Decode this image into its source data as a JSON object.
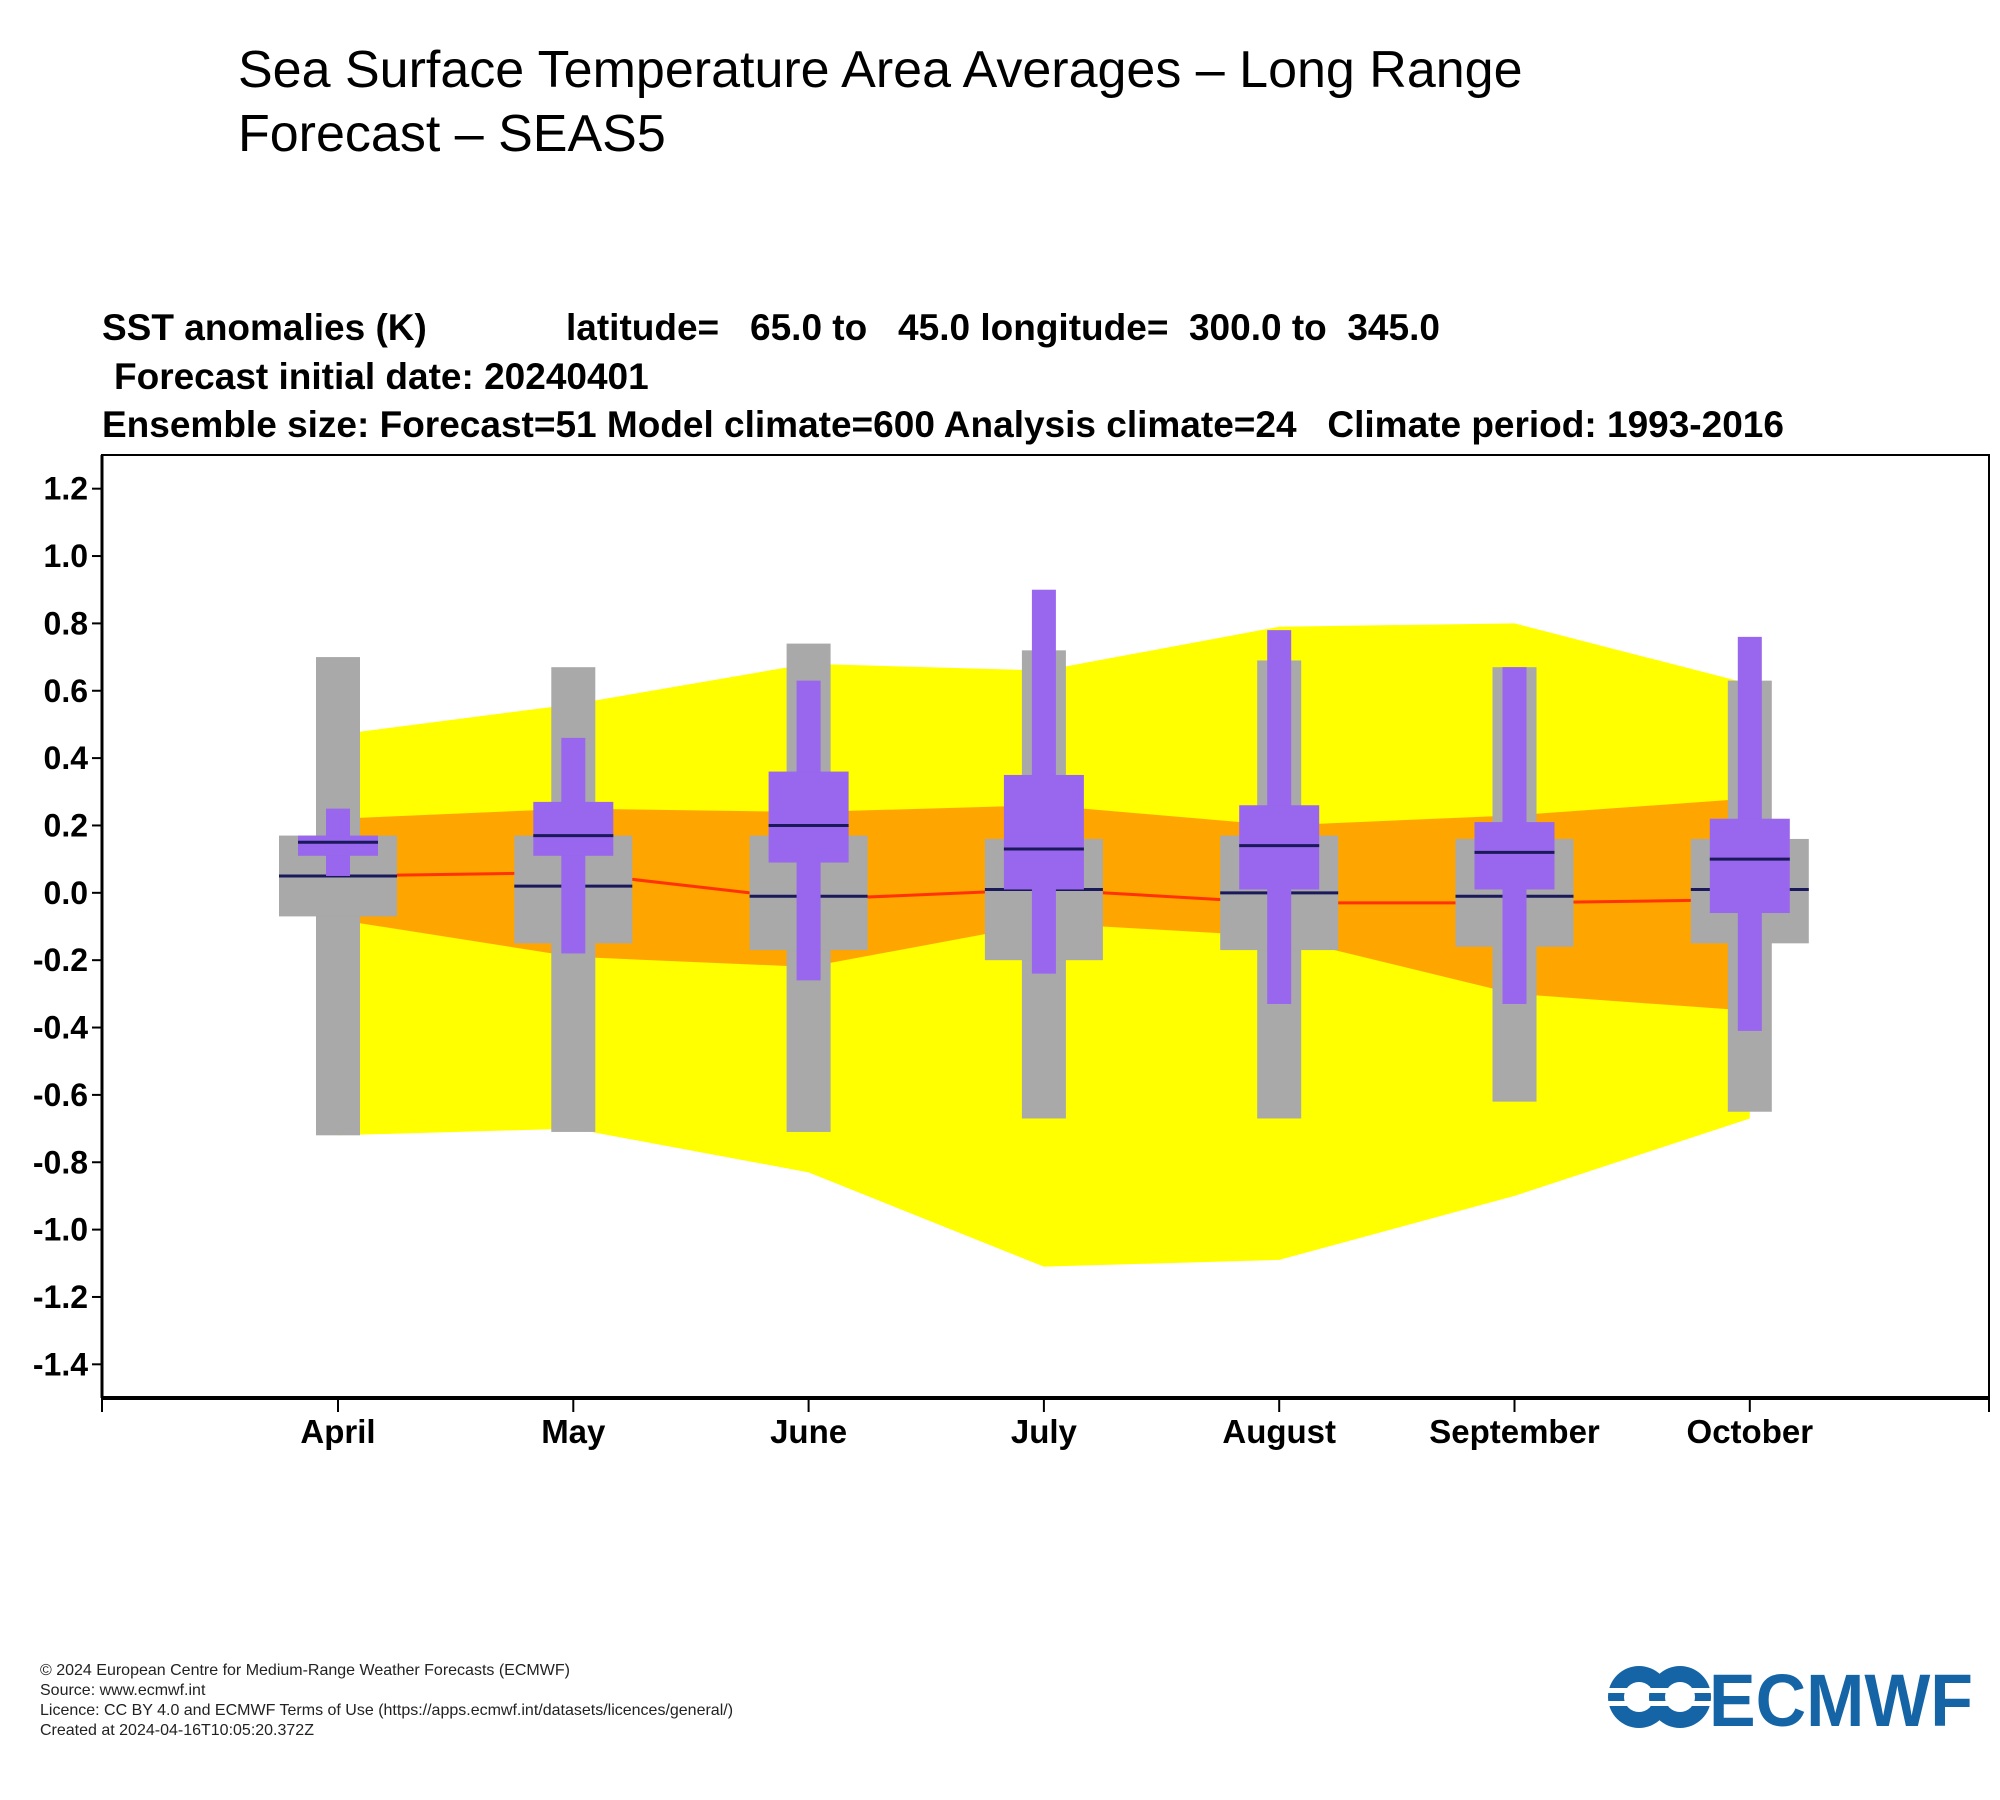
{
  "page": {
    "title": "Sea Surface Temperature Area Averages – Long Range Forecast – SEAS5"
  },
  "chart_header": {
    "line1_variable": "SST anomalies (K)",
    "line1_region": "latitude=   65.0 to   45.0 longitude=  300.0 to  345.0",
    "line2": "Forecast initial date: 20240401",
    "line3": "Ensemble size: Forecast=51 Model climate=600 Analysis climate=24   Climate period: 1993-2016"
  },
  "colors": {
    "outer_band": "#ffff00",
    "inner_band": "#ffa500",
    "median_line": "#ff3300",
    "climate_box": "#a9a9a9",
    "forecast_box": "#9966ee",
    "median_tick": "#1a1a5a",
    "logo": "#1565a6"
  },
  "chart_data": {
    "type": "box",
    "categories": [
      "April",
      "May",
      "June",
      "July",
      "August",
      "September",
      "October"
    ],
    "ylim": [
      -1.5,
      1.3
    ],
    "yticks": [
      "1.2",
      "1.0",
      "0.8",
      "0.6",
      "0.4",
      "0.2",
      "0.0",
      "-0.2",
      "-0.4",
      "-0.6",
      "-0.8",
      "-1.0",
      "-1.2",
      "-1.4"
    ],
    "ytick_values": [
      1.2,
      1.0,
      0.8,
      0.6,
      0.4,
      0.2,
      0.0,
      -0.2,
      -0.4,
      -0.6,
      -0.8,
      -1.0,
      -1.2,
      -1.4
    ],
    "analysis_outer_band": {
      "upper": [
        0.47,
        0.56,
        0.68,
        0.66,
        0.79,
        0.8,
        0.62
      ],
      "lower": [
        -0.72,
        -0.7,
        -0.83,
        -1.11,
        -1.09,
        -0.9,
        -0.67
      ]
    },
    "analysis_inner_band": {
      "upper": [
        0.22,
        0.25,
        0.24,
        0.26,
        0.2,
        0.23,
        0.28
      ],
      "lower": [
        -0.08,
        -0.19,
        -0.22,
        -0.09,
        -0.13,
        -0.3,
        -0.35
      ]
    },
    "analysis_median": [
      0.05,
      0.06,
      -0.02,
      0.01,
      -0.03,
      -0.03,
      -0.02
    ],
    "model_climate": [
      {
        "min": -0.72,
        "q1": -0.07,
        "median": 0.05,
        "q3": 0.17,
        "max": 0.7
      },
      {
        "min": -0.71,
        "q1": -0.15,
        "median": 0.02,
        "q3": 0.17,
        "max": 0.67
      },
      {
        "min": -0.71,
        "q1": -0.17,
        "median": -0.01,
        "q3": 0.17,
        "max": 0.74
      },
      {
        "min": -0.67,
        "q1": -0.2,
        "median": 0.01,
        "q3": 0.16,
        "max": 0.72
      },
      {
        "min": -0.67,
        "q1": -0.17,
        "median": 0.0,
        "q3": 0.17,
        "max": 0.69
      },
      {
        "min": -0.62,
        "q1": -0.16,
        "median": -0.01,
        "q3": 0.16,
        "max": 0.67
      },
      {
        "min": -0.65,
        "q1": -0.15,
        "median": 0.01,
        "q3": 0.16,
        "max": 0.63
      }
    ],
    "forecast": [
      {
        "min": 0.05,
        "q1": 0.11,
        "median": 0.15,
        "q3": 0.17,
        "max": 0.25
      },
      {
        "min": -0.18,
        "q1": 0.11,
        "median": 0.17,
        "q3": 0.27,
        "max": 0.46
      },
      {
        "min": -0.26,
        "q1": 0.09,
        "median": 0.2,
        "q3": 0.36,
        "max": 0.63
      },
      {
        "min": -0.24,
        "q1": 0.01,
        "median": 0.13,
        "q3": 0.35,
        "max": 0.9
      },
      {
        "min": -0.33,
        "q1": 0.01,
        "median": 0.14,
        "q3": 0.26,
        "max": 0.78
      },
      {
        "min": -0.33,
        "q1": 0.01,
        "median": 0.12,
        "q3": 0.21,
        "max": 0.67
      },
      {
        "min": -0.41,
        "q1": -0.06,
        "median": 0.1,
        "q3": 0.22,
        "max": 0.76
      }
    ]
  },
  "footer": {
    "copyright": "© 2024 European Centre for Medium-Range Weather Forecasts (ECMWF)",
    "source": "Source: www.ecmwf.int",
    "licence": "Licence: CC BY 4.0 and ECMWF Terms of Use (https://apps.ecmwf.int/datasets/licences/general/)",
    "created": "Created at 2024-04-16T10:05:20.372Z"
  },
  "logo": {
    "text": "ECMWF",
    "icon": "ecmwf-logo-icon"
  }
}
